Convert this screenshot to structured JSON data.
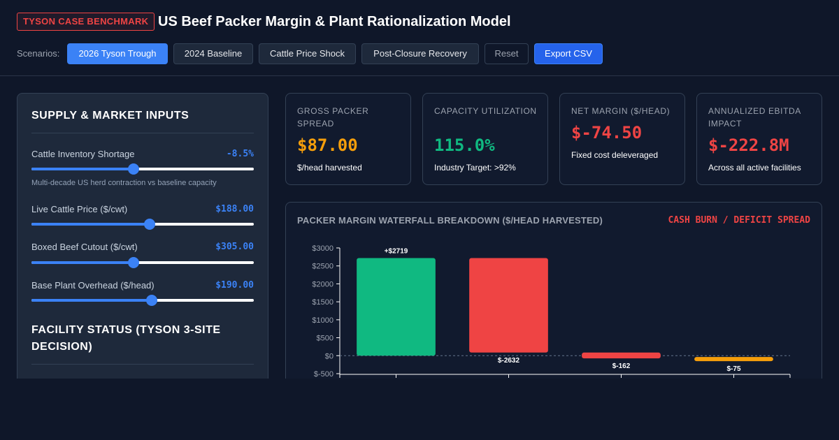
{
  "header": {
    "badge": "TYSON CASE BENCHMARK",
    "title": "US Beef Packer Margin & Plant Rationalization Model"
  },
  "scenarios": {
    "label": "Scenarios:",
    "buttons": [
      "2026 Tyson Trough",
      "2024 Baseline",
      "Cattle Price Shock",
      "Post-Closure Recovery"
    ],
    "active_index": 0,
    "reset_label": "Reset",
    "export_label": "Export CSV"
  },
  "inputs": {
    "title": "SUPPLY & MARKET INPUTS",
    "sliders": [
      {
        "label": "Cattle Inventory Shortage",
        "value": "-8.5%",
        "note": "Multi-decade US herd contraction vs baseline capacity",
        "level": 0.46
      },
      {
        "label": "Live Cattle Price ($/cwt)",
        "value": "$188.00",
        "level": 0.53
      },
      {
        "label": "Boxed Beef Cutout ($/cwt)",
        "value": "$305.00",
        "level": 0.46
      },
      {
        "label": "Base Plant Overhead ($/head)",
        "value": "$190.00",
        "level": 0.54
      }
    ],
    "facility_title": "FACILITY STATUS (TYSON 3-SITE DECISION)"
  },
  "kpis": [
    {
      "label": "GROSS PACKER SPREAD",
      "value": "$87.00",
      "sub": "$/head harvested",
      "color": "#f59e0b"
    },
    {
      "label": "CAPACITY UTILIZATION",
      "value": "115.0%",
      "sub": "Industry Target: >92%",
      "color": "#10b981"
    },
    {
      "label": "NET MARGIN ($/HEAD)",
      "value": "$-74.50",
      "sub": "Fixed cost deleveraged",
      "color": "#ef4444"
    },
    {
      "label": "ANNUALIZED EBITDA IMPACT",
      "value": "$-222.8M",
      "sub": "Across all active facilities",
      "color": "#ef4444"
    }
  ],
  "chart": {
    "title": "PACKER MARGIN WATERFALL BREAKDOWN ($/HEAD HARVESTED)",
    "status": "CASH BURN / DEFICIT SPREAD"
  },
  "chart_data": {
    "type": "bar",
    "subtype": "waterfall",
    "title": "PACKER MARGIN WATERFALL BREAKDOWN ($/HEAD HARVESTED)",
    "steps": [
      {
        "value": 2719,
        "label": "+$2719",
        "color": "#10b981"
      },
      {
        "value": -2632,
        "label": "$-2632",
        "color": "#ef4444"
      },
      {
        "value": -162,
        "label": "$-162",
        "color": "#ef4444"
      },
      {
        "value": -75,
        "label": "$-75",
        "color": "#f59e0b"
      }
    ],
    "y_ticks": [
      "$3000",
      "$2500",
      "$2000",
      "$1500",
      "$1000",
      "$500",
      "$0",
      "$-500"
    ],
    "y_tick_values": [
      3000,
      2500,
      2000,
      1500,
      1000,
      500,
      0,
      -500
    ],
    "ylim": [
      -500,
      3000
    ],
    "zero_line": "dashed"
  }
}
